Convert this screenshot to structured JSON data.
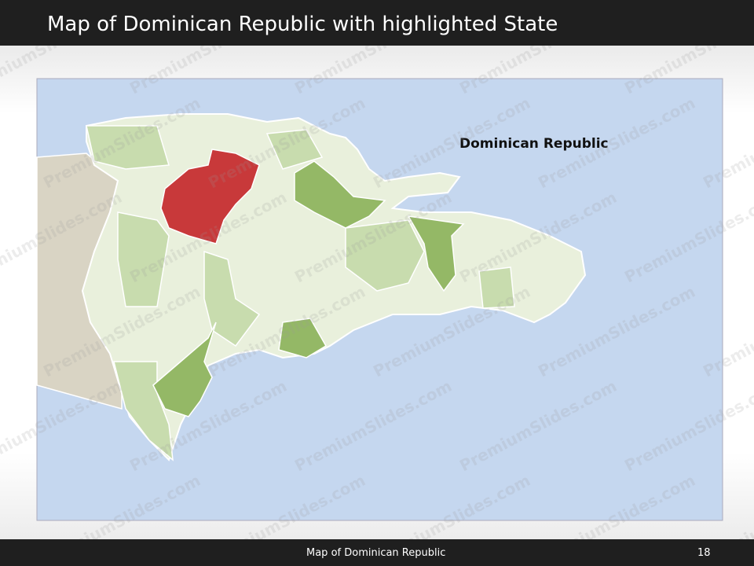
{
  "header": {
    "title": "Map of Dominican Republic with highlighted State"
  },
  "map": {
    "label": "Dominican Republic"
  },
  "footer": {
    "caption": "Map of Dominican Republic",
    "page": "18"
  },
  "watermark": "PremiumSlides.com"
}
